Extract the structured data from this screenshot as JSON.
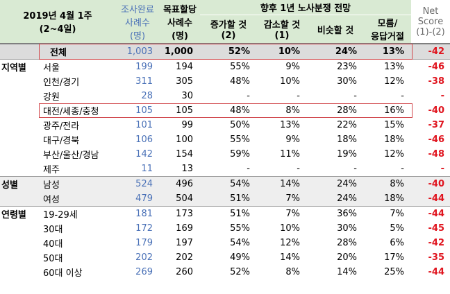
{
  "header": {
    "period_line1": "2019년 4월 1주",
    "period_line2": "(2~4일)",
    "cnt_line1": "조사완료",
    "cnt_line2": "사례수",
    "cnt_line3": "(명)",
    "tgt_line1": "목표할당",
    "tgt_line2": "사례수",
    "tgt_line3": "(명)",
    "outlook_title": "향후 1년 노사분쟁 전망",
    "inc_line1": "증가할 것",
    "inc_line2": "(2)",
    "dec_line1": "감소할 것",
    "dec_line2": "(1)",
    "sim": "비슷할 것",
    "unk_line1": "모름/",
    "unk_line2": "응답거절",
    "net_line1": "Net",
    "net_line2": "Score",
    "net_line3": "(1)-(2)"
  },
  "total": {
    "label": "전체",
    "count": "1,003",
    "target": "1,000",
    "inc": "52%",
    "dec": "10%",
    "sim": "24%",
    "unk": "13%",
    "net": "-42"
  },
  "groups": [
    {
      "name": "지역별",
      "rows": [
        {
          "label": "서울",
          "count": "199",
          "target": "194",
          "inc": "55%",
          "dec": "9%",
          "sim": "23%",
          "unk": "13%",
          "net": "-46"
        },
        {
          "label": "인천/경기",
          "count": "311",
          "target": "305",
          "inc": "48%",
          "dec": "10%",
          "sim": "30%",
          "unk": "12%",
          "net": "-38"
        },
        {
          "label": "강원",
          "count": "28",
          "target": "30",
          "inc": "-",
          "dec": "-",
          "sim": "-",
          "unk": "-",
          "net": "-"
        },
        {
          "label": "대전/세종/충청",
          "count": "105",
          "target": "105",
          "inc": "48%",
          "dec": "8%",
          "sim": "28%",
          "unk": "16%",
          "net": "-40"
        },
        {
          "label": "광주/전라",
          "count": "101",
          "target": "99",
          "inc": "50%",
          "dec": "13%",
          "sim": "22%",
          "unk": "15%",
          "net": "-37"
        },
        {
          "label": "대구/경북",
          "count": "106",
          "target": "100",
          "inc": "55%",
          "dec": "9%",
          "sim": "18%",
          "unk": "18%",
          "net": "-46"
        },
        {
          "label": "부산/울산/경남",
          "count": "142",
          "target": "154",
          "inc": "59%",
          "dec": "11%",
          "sim": "19%",
          "unk": "12%",
          "net": "-48"
        },
        {
          "label": "제주",
          "count": "11",
          "target": "13",
          "inc": "-",
          "dec": "-",
          "sim": "-",
          "unk": "-",
          "net": "-"
        }
      ]
    },
    {
      "name": "성별",
      "rows": [
        {
          "label": "남성",
          "count": "524",
          "target": "496",
          "inc": "54%",
          "dec": "14%",
          "sim": "24%",
          "unk": "8%",
          "net": "-40"
        },
        {
          "label": "여성",
          "count": "479",
          "target": "504",
          "inc": "51%",
          "dec": "7%",
          "sim": "24%",
          "unk": "18%",
          "net": "-44"
        }
      ]
    },
    {
      "name": "연령별",
      "rows": [
        {
          "label": "19-29세",
          "count": "181",
          "target": "173",
          "inc": "51%",
          "dec": "7%",
          "sim": "36%",
          "unk": "7%",
          "net": "-44"
        },
        {
          "label": "30대",
          "count": "172",
          "target": "169",
          "inc": "55%",
          "dec": "10%",
          "sim": "30%",
          "unk": "5%",
          "net": "-45"
        },
        {
          "label": "40대",
          "count": "179",
          "target": "197",
          "inc": "54%",
          "dec": "12%",
          "sim": "28%",
          "unk": "6%",
          "net": "-42"
        },
        {
          "label": "50대",
          "count": "202",
          "target": "202",
          "inc": "49%",
          "dec": "14%",
          "sim": "20%",
          "unk": "17%",
          "net": "-35"
        },
        {
          "label": "60대 이상",
          "count": "269",
          "target": "260",
          "inc": "52%",
          "dec": "8%",
          "sim": "14%",
          "unk": "25%",
          "net": "-44"
        }
      ]
    }
  ],
  "colors": {
    "count_text": "#4a71b7",
    "net_text": "#e0141e",
    "header_bg": "#d9ead3",
    "highlight_border": "#d0454a"
  }
}
